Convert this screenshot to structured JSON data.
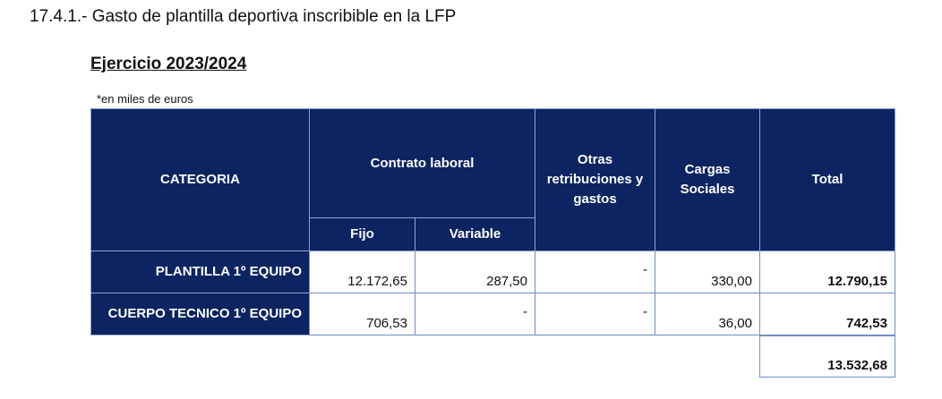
{
  "header": {
    "title": "17.4.1.- Gasto de plantilla deportiva inscribible en la LFP",
    "section": "Ejercicio 2023/2024",
    "note": "*en miles de euros"
  },
  "table": {
    "columns": {
      "category": "CATEGORIA",
      "contract": "Contrato laboral",
      "fixed": "Fijo",
      "variable": "Variable",
      "other": "Otras retribuciones y gastos",
      "social": "Cargas Sociales",
      "total": "Total"
    },
    "rows": [
      [
        "PLANTILLA 1º EQUIPO",
        "12.172,65",
        "287,50",
        "-",
        "330,00",
        "12.790,15"
      ],
      [
        "CUERPO TECNICO 1º EQUIPO",
        "706,53",
        "-",
        "-",
        "36,00",
        "742,53"
      ]
    ],
    "grand_total": "13.532,68"
  }
}
